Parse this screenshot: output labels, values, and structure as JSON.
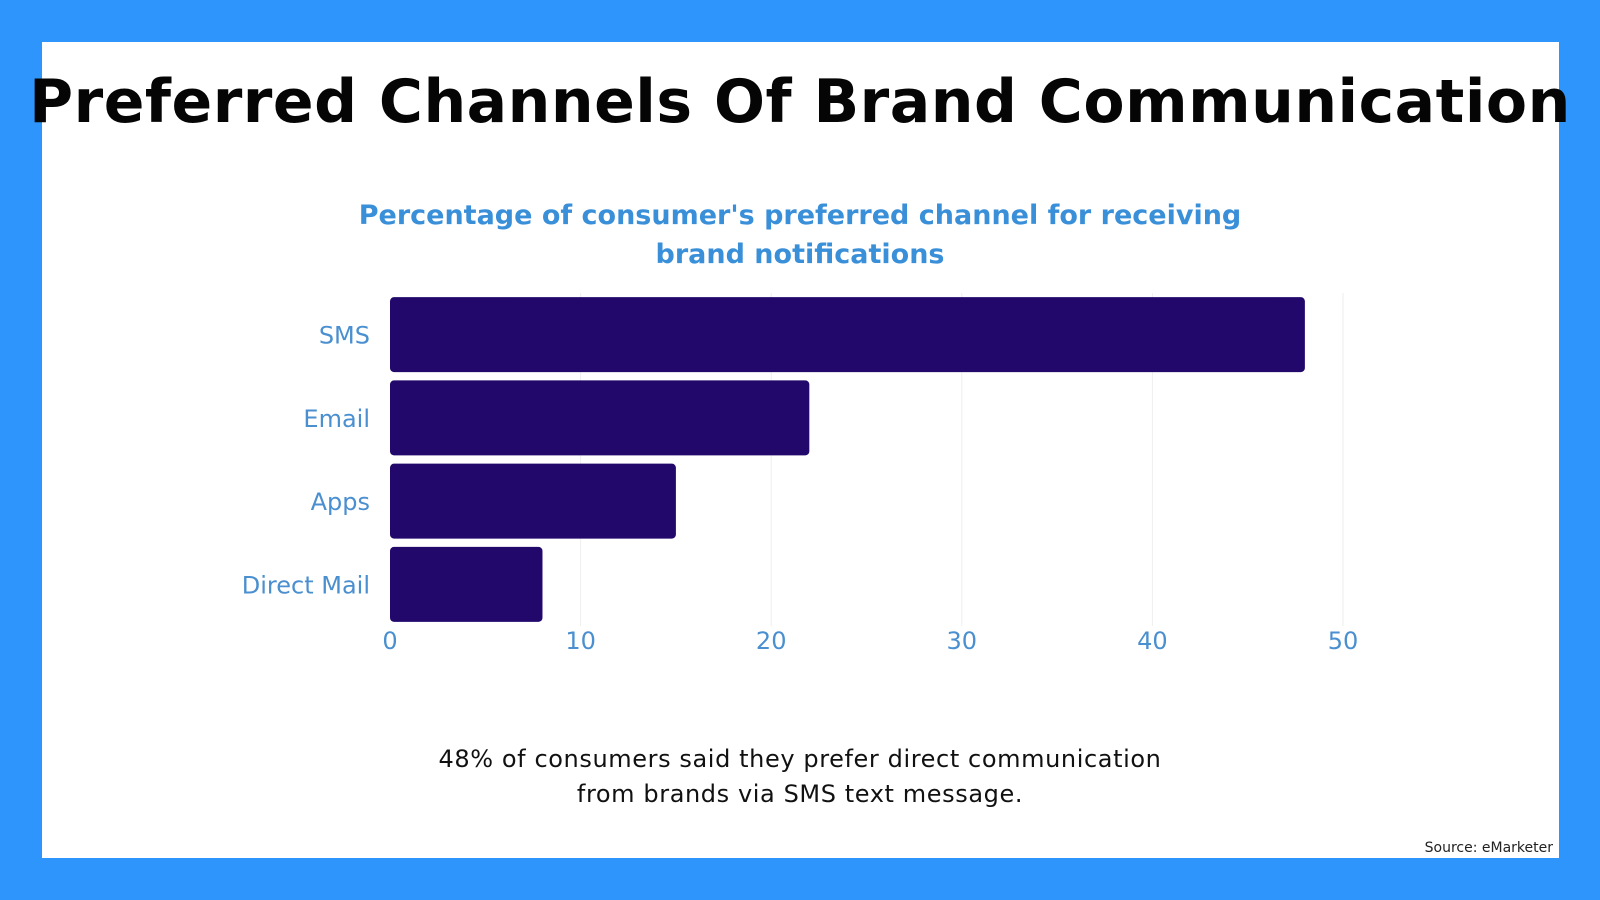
{
  "background_color": "#2e95fc",
  "card_color": "#ffffff",
  "heading": "Preferred Channels Of Brand Communication",
  "caption": {
    "line1": "48% of consumers said they prefer direct communication",
    "line2": "from brands via SMS text message."
  },
  "source": "Source: eMarketer",
  "chart_data": {
    "type": "bar",
    "orientation": "horizontal",
    "title_line1": "Percentage of consumer's preferred channel for receiving",
    "title_line2": "brand notifications",
    "categories": [
      "SMS",
      "Email",
      "Apps",
      "Direct Mail"
    ],
    "values": [
      48,
      22,
      15,
      8
    ],
    "xlim": [
      0,
      50
    ],
    "xticks": [
      0,
      10,
      20,
      30,
      40,
      50
    ],
    "xlabel": "",
    "ylabel": "",
    "grid": true,
    "bar_color": "#22086b",
    "label_color": "#4a8fcf",
    "title_color": "#3a8fd9"
  }
}
